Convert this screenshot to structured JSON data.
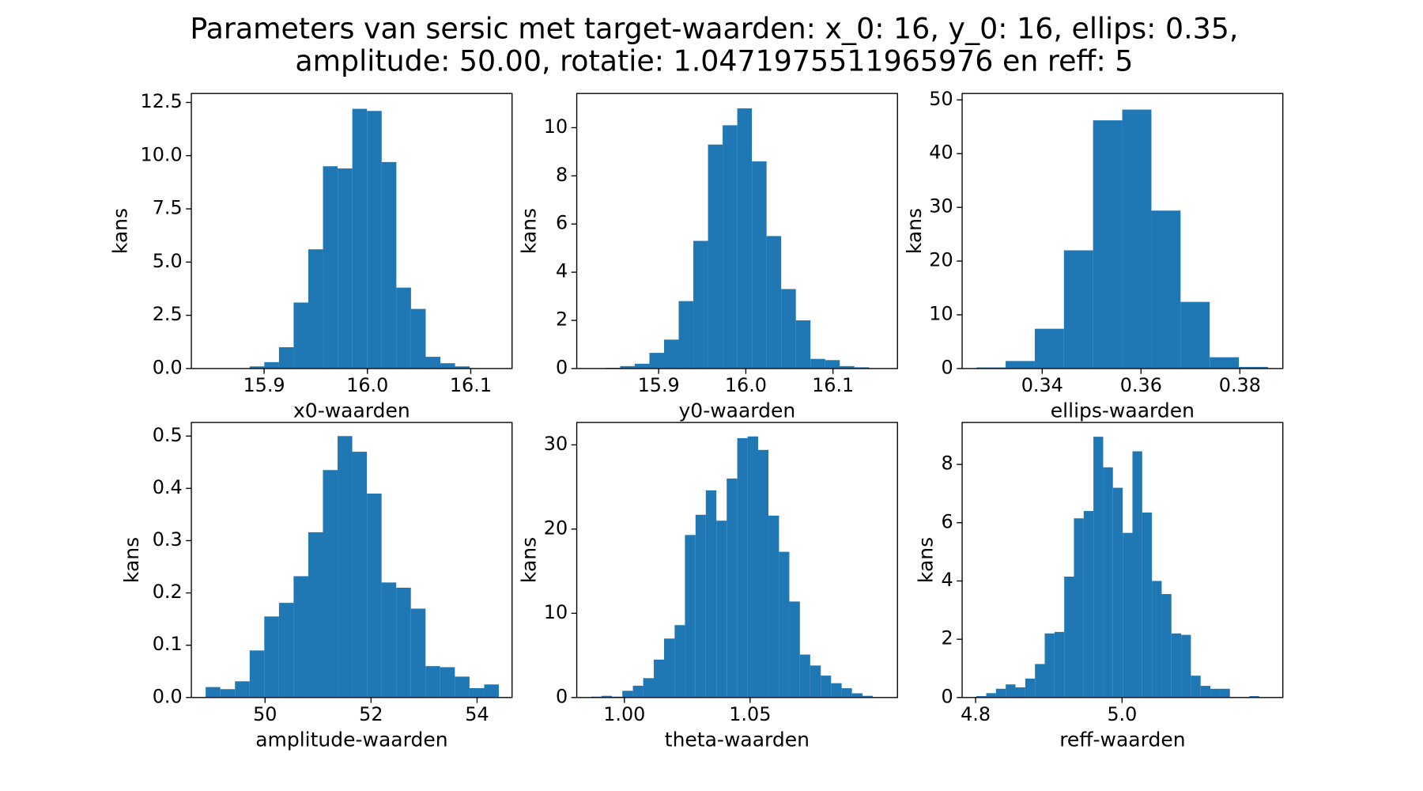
{
  "title": [
    "Parameters van sersic met target-waarden: x_0: 16, y_0: 16, ellips: 0.35,",
    "amplitude: 50.00, rotatie: 1.0471975511965976 en reff: 5"
  ],
  "chart_data": [
    {
      "type": "histogram",
      "xlabel": "x0-waarden",
      "ylabel": "kans",
      "color": "#1f77b4",
      "bins": [
        15.886,
        15.9002,
        15.9144,
        15.9286,
        15.9428,
        15.957,
        15.9712,
        15.9854,
        15.9996,
        16.0138,
        16.028,
        16.0422,
        16.0564,
        16.0706,
        16.0848,
        16.099
      ],
      "values": [
        0.1,
        0.3,
        1.0,
        3.1,
        5.6,
        9.5,
        9.4,
        12.2,
        12.1,
        9.7,
        3.8,
        2.8,
        0.55,
        0.25,
        0.1
      ],
      "xlim": [
        15.8296,
        16.14
      ],
      "ylim": [
        0,
        12.92
      ],
      "xticks": [
        15.9,
        {
          "value": 16,
          "label": "16.0"
        },
        16.1
      ],
      "yticks": [
        {
          "value": 0,
          "label": "0.0"
        },
        2.5,
        {
          "value": 5,
          "label": "5.0"
        },
        7.5,
        {
          "value": 10,
          "label": "10.0"
        },
        12.5
      ]
    },
    {
      "type": "histogram",
      "xlabel": "y0-waarden",
      "ylabel": "kans",
      "color": "#1f77b4",
      "bins": [
        15.839,
        15.8558,
        15.8726,
        15.8894,
        15.9062,
        15.923,
        15.9398,
        15.9566,
        15.9734,
        15.9902,
        16.007,
        16.0238,
        16.0406,
        16.0574,
        16.0742,
        16.091,
        16.1078,
        16.1246,
        16.1414
      ],
      "values": [
        0.03,
        0.1,
        0.2,
        0.65,
        1.2,
        2.8,
        5.3,
        9.3,
        10.1,
        10.8,
        8.6,
        5.5,
        3.3,
        2.0,
        0.4,
        0.35,
        0.1,
        0.05
      ],
      "xlim": [
        15.806,
        16.174
      ],
      "ylim": [
        0,
        11.42
      ],
      "xticks": [
        15.9,
        {
          "value": 16,
          "label": "16.0"
        },
        16.1
      ],
      "yticks": [
        0,
        2,
        4,
        6,
        8,
        10
      ]
    },
    {
      "type": "histogram",
      "xlabel": "ellips-waarden",
      "ylabel": "kans",
      "color": "#1f77b4",
      "bins": [
        0.3267,
        0.3326,
        0.3385,
        0.3444,
        0.3503,
        0.3562,
        0.3621,
        0.368,
        0.3739,
        0.3798,
        0.3857
      ],
      "values": [
        0.2,
        1.4,
        7.4,
        22,
        46.2,
        48.2,
        29.4,
        12.4,
        2.1,
        0.3
      ],
      "xlim": [
        0.3238,
        0.3887
      ],
      "ylim": [
        0,
        51.2
      ],
      "xticks": [
        0.34,
        0.36,
        0.38
      ],
      "yticks": [
        0,
        10,
        20,
        30,
        40,
        50
      ]
    },
    {
      "type": "histogram",
      "xlabel": "amplitude-waarden",
      "ylabel": "kans",
      "color": "#1f77b4",
      "bins": [
        48.88,
        49.157,
        49.433,
        49.71,
        49.986,
        50.263,
        50.539,
        50.816,
        51.092,
        51.369,
        51.645,
        51.922,
        52.198,
        52.475,
        52.751,
        53.028,
        53.304,
        53.581,
        53.857,
        54.134,
        54.41
      ],
      "values": [
        0.02,
        0.016,
        0.031,
        0.09,
        0.155,
        0.181,
        0.232,
        0.316,
        0.435,
        0.5,
        0.47,
        0.39,
        0.22,
        0.21,
        0.17,
        0.06,
        0.058,
        0.04,
        0.018,
        0.025
      ],
      "xlim": [
        48.61,
        54.66
      ],
      "ylim": [
        0,
        0.526
      ],
      "xticks": [
        50,
        52,
        54
      ],
      "yticks": [
        {
          "value": 0,
          "label": "0.0"
        },
        0.1,
        0.2,
        0.3,
        0.4,
        0.5
      ]
    },
    {
      "type": "histogram",
      "xlabel": "theta-waarden",
      "ylabel": "kans",
      "color": "#1f77b4",
      "bins": [
        0.9868,
        0.9909,
        0.9951,
        0.9992,
        1.0034,
        1.0075,
        1.0117,
        1.0158,
        1.02,
        1.0241,
        1.0283,
        1.0324,
        1.0366,
        1.0407,
        1.0449,
        1.049,
        1.0532,
        1.0573,
        1.0615,
        1.0656,
        1.0698,
        1.0739,
        1.0781,
        1.0822,
        1.0864,
        1.0905,
        1.0947,
        1.0988
      ],
      "values": [
        0.1,
        0.2,
        0.1,
        0.8,
        1.4,
        2.3,
        4.5,
        7.0,
        8.6,
        19.3,
        21.7,
        24.6,
        21.0,
        26.0,
        30.8,
        31.0,
        29.4,
        21.6,
        17.3,
        11.4,
        5.1,
        3.8,
        2.6,
        1.7,
        1.1,
        0.5,
        0.2
      ],
      "xlim": [
        0.98107,
        1.1086
      ],
      "ylim": [
        0,
        32.66
      ],
      "xticks": [
        {
          "value": 1,
          "label": "1.00"
        },
        1.05
      ],
      "yticks": [
        0,
        10,
        20,
        30
      ]
    },
    {
      "type": "histogram",
      "xlabel": "reff-waarden",
      "ylabel": "kans",
      "color": "#1f77b4",
      "bins": [
        4.8012,
        4.8145,
        4.8278,
        4.8411,
        4.8544,
        4.8678,
        4.8811,
        4.8944,
        4.9077,
        4.921,
        4.9343,
        4.9476,
        4.9609,
        4.9742,
        4.9875,
        5.0009,
        5.0142,
        5.0275,
        5.0408,
        5.0541,
        5.0674,
        5.0807,
        5.094,
        5.1073,
        5.1206,
        5.134,
        5.1473,
        5.1606,
        5.1739,
        5.1872
      ],
      "values": [
        0.05,
        0.15,
        0.3,
        0.45,
        0.35,
        0.65,
        1.15,
        2.2,
        2.25,
        4.15,
        6.15,
        6.4,
        8.95,
        7.9,
        7.2,
        5.65,
        8.45,
        6.35,
        4.0,
        3.55,
        2.2,
        2.15,
        0.75,
        0.4,
        0.3,
        0.3,
        0,
        0,
        0.05
      ],
      "xlim": [
        4.7816,
        5.2196
      ],
      "ylim": [
        0,
        9.44
      ],
      "xticks": [
        4.8,
        {
          "value": 5,
          "label": "5.0"
        }
      ],
      "yticks": [
        0,
        2,
        4,
        6,
        8
      ]
    }
  ]
}
